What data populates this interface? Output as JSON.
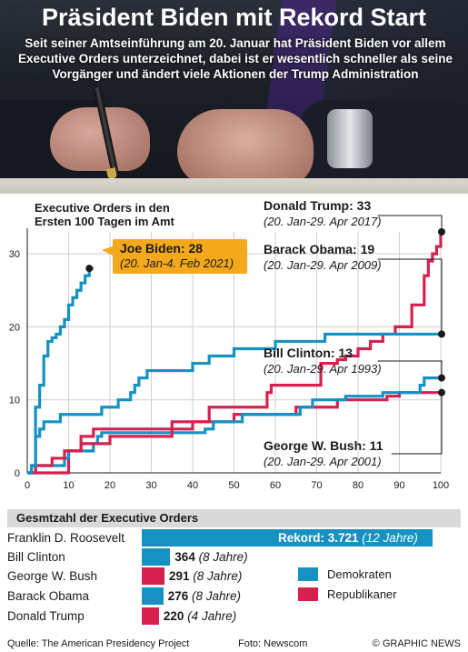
{
  "title": "Präsident Biden mit Rekord Start",
  "subtitle": "Seit seiner Amtseinführung am 20. Januar hat Präsident Biden vor allem Executive Orders unterzeichnet, dabei ist er wesentlich schneller als seine Vorgänger und ändert viele Aktionen der Trump Administration",
  "colors": {
    "democrat": "#1592c1",
    "republican": "#d6214f"
  },
  "chart_data": [
    {
      "type": "line",
      "title": "Executive Orders in den ersten 100 Tagen im Amt",
      "title_lines": [
        "Executive Orders in den",
        "Ersten 100 Tagen im Amt"
      ],
      "xlabel": "",
      "ylabel": "",
      "xlim": [
        0,
        100
      ],
      "ylim": [
        0,
        33
      ],
      "x_ticks": [
        0,
        10,
        20,
        30,
        40,
        50,
        60,
        70,
        80,
        90,
        100
      ],
      "y_ticks": [
        0,
        10,
        20,
        30
      ],
      "grid": true,
      "step": true,
      "series": [
        {
          "name": "Joe Biden",
          "label": "Joe Biden: 28",
          "period": "(20. Jan-4. Feb 2021)",
          "party": "democrat",
          "final": 28,
          "points": [
            [
              0,
              0
            ],
            [
              1,
              1
            ],
            [
              2,
              9
            ],
            [
              3,
              12
            ],
            [
              4,
              16
            ],
            [
              5,
              18
            ],
            [
              6,
              18.5
            ],
            [
              7,
              19
            ],
            [
              8,
              20
            ],
            [
              9,
              21
            ],
            [
              10,
              23
            ],
            [
              11,
              24
            ],
            [
              12,
              25
            ],
            [
              13,
              26
            ],
            [
              14,
              27
            ],
            [
              15,
              28
            ],
            [
              16,
              28
            ]
          ]
        },
        {
          "name": "Donald Trump",
          "label": "Donald Trump: 33",
          "period": "(20. Jan-29. Apr  2017)",
          "party": "republican",
          "final": 33,
          "points": [
            [
              0,
              0
            ],
            [
              2,
              1
            ],
            [
              6,
              2
            ],
            [
              9,
              3
            ],
            [
              13,
              4
            ],
            [
              20,
              5
            ],
            [
              35,
              7
            ],
            [
              44,
              9
            ],
            [
              58,
              11
            ],
            [
              59,
              12
            ],
            [
              71,
              15
            ],
            [
              75,
              15.5
            ],
            [
              77,
              16
            ],
            [
              80,
              17
            ],
            [
              83,
              18
            ],
            [
              86,
              19
            ],
            [
              89,
              20
            ],
            [
              93,
              23
            ],
            [
              96,
              27
            ],
            [
              97,
              29
            ],
            [
              98,
              30
            ],
            [
              99,
              31
            ],
            [
              100,
              33
            ]
          ]
        },
        {
          "name": "Barack Obama",
          "label": "Barack Obama: 19",
          "period": "(20. Jan-29. Apr 2009)",
          "party": "democrat",
          "final": 19,
          "points": [
            [
              0,
              0
            ],
            [
              1,
              1
            ],
            [
              2,
              5
            ],
            [
              3,
              6
            ],
            [
              4,
              7
            ],
            [
              8,
              8
            ],
            [
              18,
              9
            ],
            [
              22,
              10
            ],
            [
              25,
              11
            ],
            [
              26,
              12
            ],
            [
              27,
              13
            ],
            [
              29,
              14
            ],
            [
              40,
              15
            ],
            [
              44,
              16
            ],
            [
              50,
              17
            ],
            [
              60,
              18
            ],
            [
              72,
              19
            ],
            [
              100,
              19
            ]
          ]
        },
        {
          "name": "Bill Clinton",
          "label": "Bill Clinton: 13",
          "period": "(20. Jan-29. Apr 1993)",
          "party": "democrat",
          "final": 13,
          "points": [
            [
              0,
              0
            ],
            [
              2,
              1
            ],
            [
              9,
              2
            ],
            [
              10,
              3
            ],
            [
              16,
              4
            ],
            [
              17,
              5
            ],
            [
              18,
              5.5
            ],
            [
              43,
              6
            ],
            [
              45,
              7
            ],
            [
              52,
              8
            ],
            [
              66,
              9
            ],
            [
              69,
              10
            ],
            [
              77,
              10.5
            ],
            [
              86,
              11
            ],
            [
              95,
              12
            ],
            [
              96,
              13
            ],
            [
              100,
              13
            ]
          ]
        },
        {
          "name": "George W. Bush",
          "label": "George W. Bush: 11",
          "period": "(20. Jan-29. Apr 2001)",
          "party": "republican",
          "final": 11,
          "points": [
            [
              0,
              0
            ],
            [
              10,
              3
            ],
            [
              13,
              5
            ],
            [
              16,
              6
            ],
            [
              40,
              7
            ],
            [
              50,
              8
            ],
            [
              65,
              9
            ],
            [
              75,
              10
            ],
            [
              87,
              10.5
            ],
            [
              90,
              11
            ],
            [
              100,
              11
            ]
          ]
        }
      ]
    },
    {
      "type": "bar",
      "title": "Gesmtzahl der Executive Orders",
      "categories": [
        "Franklin D. Roosevelt",
        "Bill Clinton",
        "George W. Bush",
        "Barack Obama",
        "Donald Trump"
      ],
      "values": [
        3721,
        364,
        291,
        276,
        220
      ],
      "value_labels": [
        "Rekord: 3.721",
        "364",
        "291",
        "276",
        "220"
      ],
      "years_labels": [
        "(12 Jahre)",
        "(8 Jahre)",
        "(8 Jahre)",
        "(8 Jahre)",
        "(4 Jahre)"
      ],
      "party": [
        "democrat",
        "democrat",
        "republican",
        "democrat",
        "republican"
      ],
      "legend": [
        {
          "label": "Demokraten",
          "party": "democrat"
        },
        {
          "label": "Republikaner",
          "party": "republican"
        }
      ]
    }
  ],
  "footer": {
    "source": "Quelle: The American Presidency Project",
    "photo": "Foto: Newscom",
    "credit": "© GRAPHIC NEWS"
  }
}
